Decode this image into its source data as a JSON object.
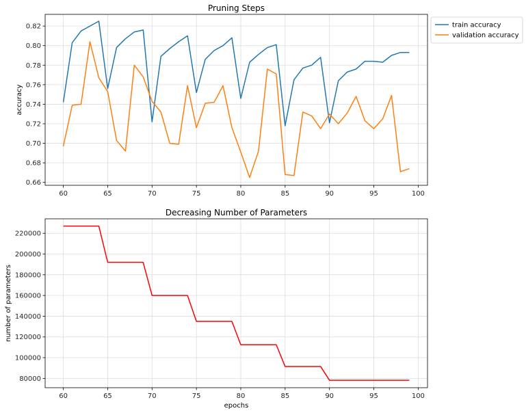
{
  "chart_data": [
    {
      "type": "line",
      "title": "Pruning Steps",
      "xlabel": "",
      "ylabel": "accuracy",
      "xlim": [
        57.95,
        101.05
      ],
      "ylim": [
        0.657,
        0.832
      ],
      "xticks": [
        60,
        65,
        70,
        75,
        80,
        85,
        90,
        95,
        100
      ],
      "yticks": [
        0.66,
        0.68,
        0.7,
        0.72,
        0.74,
        0.76,
        0.78,
        0.8,
        0.82
      ],
      "ytick_labels": [
        "0.66",
        "0.68",
        "0.70",
        "0.72",
        "0.74",
        "0.76",
        "0.78",
        "0.80",
        "0.82"
      ],
      "grid": true,
      "legend": "outside-top-right",
      "x": [
        60,
        61,
        62,
        63,
        64,
        65,
        66,
        67,
        68,
        69,
        70,
        71,
        72,
        73,
        74,
        75,
        76,
        77,
        78,
        79,
        80,
        81,
        82,
        83,
        84,
        85,
        86,
        87,
        88,
        89,
        90,
        91,
        92,
        93,
        94,
        95,
        96,
        97,
        98,
        99
      ],
      "series": [
        {
          "name": "train accuracy",
          "color": "#1f77b4",
          "values": [
            0.742,
            0.803,
            0.815,
            0.82,
            0.825,
            0.756,
            0.798,
            0.807,
            0.814,
            0.816,
            0.722,
            0.789,
            0.797,
            0.804,
            0.81,
            0.752,
            0.786,
            0.795,
            0.8,
            0.808,
            0.746,
            0.783,
            0.791,
            0.798,
            0.801,
            0.718,
            0.765,
            0.777,
            0.78,
            0.788,
            0.721,
            0.764,
            0.773,
            0.776,
            0.784,
            0.784,
            0.783,
            0.79,
            0.793,
            0.793
          ]
        },
        {
          "name": "validation accuracy",
          "color": "#ff7f0e",
          "values": [
            0.697,
            0.739,
            0.74,
            0.804,
            0.767,
            0.753,
            0.703,
            0.692,
            0.78,
            0.768,
            0.743,
            0.732,
            0.7,
            0.699,
            0.759,
            0.716,
            0.741,
            0.742,
            0.759,
            0.716,
            0.691,
            0.665,
            0.692,
            0.776,
            0.771,
            0.668,
            0.667,
            0.732,
            0.728,
            0.715,
            0.73,
            0.72,
            0.731,
            0.748,
            0.723,
            0.715,
            0.725,
            0.749,
            0.671,
            0.674
          ]
        }
      ]
    },
    {
      "type": "line",
      "title": "Decreasing Number of Parameters",
      "xlabel": "epochs",
      "ylabel": "number of parameters",
      "xlim": [
        57.95,
        101.05
      ],
      "ylim": [
        71000,
        234000
      ],
      "xticks": [
        60,
        65,
        70,
        75,
        80,
        85,
        90,
        95,
        100
      ],
      "yticks": [
        80000,
        100000,
        120000,
        140000,
        160000,
        180000,
        200000,
        220000
      ],
      "ytick_labels": [
        "80000",
        "100000",
        "120000",
        "140000",
        "160000",
        "180000",
        "200000",
        "220000"
      ],
      "grid": true,
      "x": [
        60,
        61,
        62,
        63,
        64,
        65,
        66,
        67,
        68,
        69,
        70,
        71,
        72,
        73,
        74,
        75,
        76,
        77,
        78,
        79,
        80,
        81,
        82,
        83,
        84,
        85,
        86,
        87,
        88,
        89,
        90,
        91,
        92,
        93,
        94,
        95,
        96,
        97,
        98,
        99
      ],
      "series": [
        {
          "color": "#ff0000",
          "values": [
            227000,
            227000,
            227000,
            227000,
            227000,
            192000,
            192000,
            192000,
            192000,
            192000,
            160000,
            160000,
            160000,
            160000,
            160000,
            135000,
            135000,
            135000,
            135000,
            135000,
            112500,
            112500,
            112500,
            112500,
            112500,
            91500,
            91500,
            91500,
            91500,
            91500,
            78200,
            78200,
            78200,
            78200,
            78200,
            78200,
            78200,
            78200,
            78200,
            78200
          ]
        }
      ]
    }
  ]
}
